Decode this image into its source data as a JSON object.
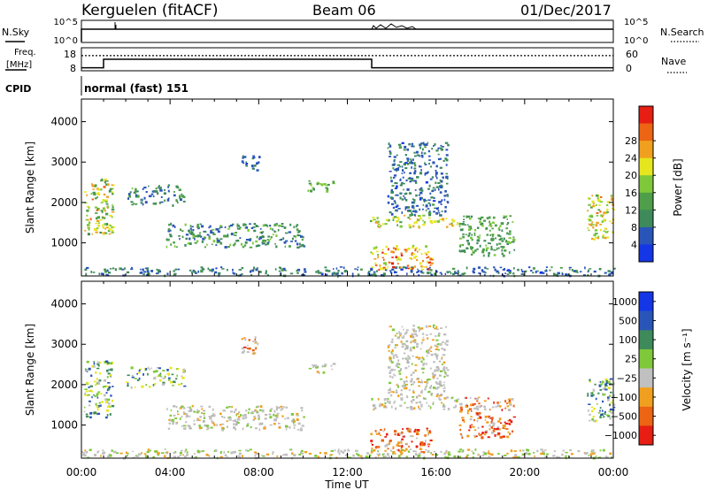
{
  "header": {
    "station": "Kerguelen (fitACF)",
    "beam": "Beam 06",
    "date": "01/Dec/2017"
  },
  "nsky_panel": {
    "left_label": "N.Sky",
    "right_label": "N.Search",
    "left_ticks": [
      "10^5",
      "10^0"
    ],
    "right_ticks": [
      "10^5",
      "10^0"
    ]
  },
  "freq_panel": {
    "left_label_1": "Freq.",
    "left_label_2": "[MHz]",
    "right_label": "Nave",
    "left_ticks": [
      "18",
      "8"
    ],
    "right_ticks": [
      "60",
      "0"
    ],
    "freq_steps": [
      {
        "t": 0.0,
        "f": 9.5
      },
      {
        "t": 1.0,
        "f": 9.5
      },
      {
        "t": 1.0,
        "f": 13.2
      },
      {
        "t": 13.1,
        "f": 13.2
      },
      {
        "t": 13.1,
        "f": 9.5
      },
      {
        "t": 24.0,
        "f": 9.5
      }
    ],
    "nave_level": 0.66
  },
  "cpid": {
    "label": "CPID",
    "mode": "normal (fast) 151"
  },
  "x_axis": {
    "ticks": [
      "00:00",
      "04:00",
      "08:00",
      "12:00",
      "16:00",
      "20:00",
      "00:00"
    ],
    "label": "Time UT",
    "range": [
      0,
      24
    ]
  },
  "chart_data": [
    {
      "type": "heatmap",
      "name": "power",
      "ylabel": "Slant Range [km]",
      "yticks": [
        "1000",
        "2000",
        "3000",
        "4000"
      ],
      "ylim": [
        180,
        4560
      ],
      "colorbar_label": "Power [dB]",
      "colorbar_ticks": [
        "4",
        "8",
        "12",
        "16",
        "20",
        "24",
        "28"
      ],
      "colorbar_colors": [
        "#1436e6",
        "#2a55b8",
        "#3e8a5a",
        "#4e9e4a",
        "#7ec83a",
        "#e6e61e",
        "#f0a01e",
        "#ec6414",
        "#e61e14"
      ],
      "regions": [
        {
          "t": [
            0.0,
            24.0
          ],
          "r": [
            200,
            420
          ],
          "level": [
            0.1,
            0.35
          ]
        },
        {
          "t": [
            0.1,
            1.4
          ],
          "r": [
            1200,
            2600
          ],
          "level": [
            0.3,
            0.8
          ]
        },
        {
          "t": [
            2.0,
            4.6
          ],
          "r": [
            1950,
            2450
          ],
          "level": [
            0.15,
            0.45
          ]
        },
        {
          "t": [
            3.8,
            10.0
          ],
          "r": [
            900,
            1500
          ],
          "level": [
            0.15,
            0.5
          ]
        },
        {
          "t": [
            7.2,
            8.0
          ],
          "r": [
            2800,
            3200
          ],
          "level": [
            0.1,
            0.3
          ]
        },
        {
          "t": [
            10.2,
            11.4
          ],
          "r": [
            2300,
            2550
          ],
          "level": [
            0.3,
            0.55
          ]
        },
        {
          "t": [
            13.0,
            17.0
          ],
          "r": [
            1400,
            1700
          ],
          "level": [
            0.4,
            0.75
          ]
        },
        {
          "t": [
            13.0,
            15.8
          ],
          "r": [
            350,
            950
          ],
          "level": [
            0.5,
            0.95
          ]
        },
        {
          "t": [
            13.8,
            16.5
          ],
          "r": [
            1700,
            3500
          ],
          "level": [
            0.1,
            0.35
          ]
        },
        {
          "t": [
            17.0,
            19.5
          ],
          "r": [
            700,
            1700
          ],
          "level": [
            0.25,
            0.5
          ]
        },
        {
          "t": [
            22.8,
            24.0
          ],
          "r": [
            1100,
            2200
          ],
          "level": [
            0.4,
            0.8
          ]
        }
      ]
    },
    {
      "type": "heatmap",
      "name": "velocity",
      "ylabel": "Slant Range [km]",
      "yticks": [
        "1000",
        "2000",
        "3000",
        "4000"
      ],
      "ylim": [
        180,
        4560
      ],
      "colorbar_label": "Velocity [m s⁻¹]",
      "colorbar_ticks": [
        "1000",
        "500",
        "100",
        "25",
        "−25",
        "−100",
        "−500",
        "−1000"
      ],
      "colorbar_colors": [
        "#1436e6",
        "#2a55b8",
        "#3e8a5a",
        "#7ec83a",
        "#c0c0c0",
        "#f0a01e",
        "#ec6414",
        "#e61e14"
      ],
      "regions": [
        {
          "t": [
            0.0,
            24.0
          ],
          "r": [
            200,
            420
          ],
          "kind": "ground"
        },
        {
          "t": [
            0.1,
            1.4
          ],
          "r": [
            1200,
            2600
          ],
          "kind": "toward"
        },
        {
          "t": [
            2.0,
            4.6
          ],
          "r": [
            1950,
            2450
          ],
          "kind": "toward"
        },
        {
          "t": [
            3.8,
            10.0
          ],
          "r": [
            900,
            1500
          ],
          "kind": "grey"
        },
        {
          "t": [
            7.2,
            8.0
          ],
          "r": [
            2800,
            3200
          ],
          "kind": "away"
        },
        {
          "t": [
            10.2,
            11.4
          ],
          "r": [
            2300,
            2550
          ],
          "kind": "grey"
        },
        {
          "t": [
            13.0,
            17.0
          ],
          "r": [
            1400,
            1700
          ],
          "kind": "grey"
        },
        {
          "t": [
            13.0,
            15.8
          ],
          "r": [
            350,
            950
          ],
          "kind": "away"
        },
        {
          "t": [
            13.8,
            16.5
          ],
          "r": [
            1700,
            3500
          ],
          "kind": "grey"
        },
        {
          "t": [
            17.0,
            19.5
          ],
          "r": [
            700,
            1700
          ],
          "kind": "away"
        },
        {
          "t": [
            22.8,
            24.0
          ],
          "r": [
            1100,
            2200
          ],
          "kind": "toward"
        }
      ]
    }
  ]
}
